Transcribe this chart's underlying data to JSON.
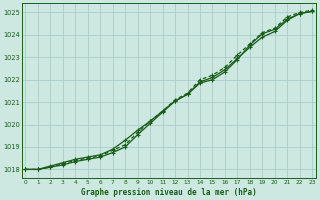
{
  "title": "Graphe pression niveau de la mer (hPa)",
  "bg_color": "#cce8e0",
  "grid_color": "#aacccc",
  "line_color": "#1a5c1a",
  "x_ticks": [
    0,
    1,
    2,
    3,
    4,
    5,
    6,
    7,
    8,
    9,
    10,
    11,
    12,
    13,
    14,
    15,
    16,
    17,
    18,
    19,
    20,
    21,
    22,
    23
  ],
  "y_ticks": [
    1018,
    1019,
    1020,
    1021,
    1022,
    1023,
    1024,
    1025
  ],
  "ylim": [
    1017.6,
    1025.4
  ],
  "xlim": [
    -0.3,
    23.3
  ],
  "series1": [
    1018.0,
    1018.0,
    1018.1,
    1018.2,
    1018.35,
    1018.45,
    1018.55,
    1018.75,
    1019.0,
    1019.55,
    1020.05,
    1020.55,
    1021.05,
    1021.35,
    1021.9,
    1022.1,
    1022.45,
    1022.95,
    1023.45,
    1023.9,
    1024.15,
    1024.65,
    1024.95,
    1025.05
  ],
  "series2": [
    1018.0,
    1018.0,
    1018.1,
    1018.25,
    1018.4,
    1018.5,
    1018.6,
    1018.85,
    1019.1,
    1019.65,
    1020.15,
    1020.6,
    1021.1,
    1021.4,
    1022.0,
    1022.2,
    1022.55,
    1023.1,
    1023.6,
    1024.1,
    1024.3,
    1024.8,
    1025.0,
    1025.1
  ],
  "series3": [
    1018.0,
    1018.0,
    1018.15,
    1018.3,
    1018.45,
    1018.55,
    1018.65,
    1018.9,
    1019.3,
    1019.75,
    1020.15,
    1020.6,
    1021.05,
    1021.35,
    1021.85,
    1022.0,
    1022.35,
    1022.9,
    1023.55,
    1024.05,
    1024.25,
    1024.7,
    1024.95,
    1025.05
  ]
}
